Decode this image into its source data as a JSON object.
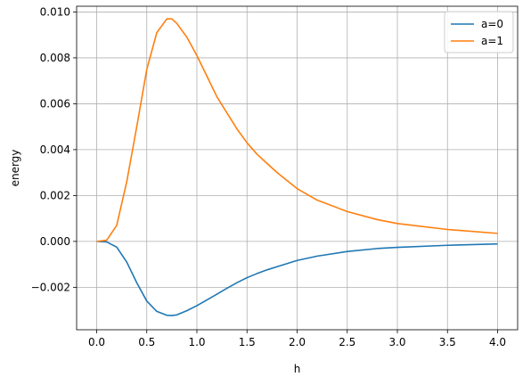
{
  "chart_data": {
    "type": "line",
    "title": "",
    "xlabel": "h",
    "ylabel": "energy",
    "xlim": [
      -0.2,
      4.2
    ],
    "ylim": [
      -0.00385,
      0.01025
    ],
    "xticks": [
      0.0,
      0.5,
      1.0,
      1.5,
      2.0,
      2.5,
      3.0,
      3.5,
      4.0
    ],
    "xtick_labels": [
      "0.0",
      "0.5",
      "1.0",
      "1.5",
      "2.0",
      "2.5",
      "3.0",
      "3.5",
      "4.0"
    ],
    "yticks": [
      -0.002,
      0.0,
      0.002,
      0.004,
      0.006,
      0.008,
      0.01
    ],
    "ytick_labels": [
      "−0.002",
      "0.000",
      "0.002",
      "0.004",
      "0.006",
      "0.008",
      "0.010"
    ],
    "grid": true,
    "legend_position": "top-right",
    "series": [
      {
        "name": "a=0",
        "color": "#1f77b4",
        "x": [
          0.0,
          0.1,
          0.2,
          0.3,
          0.4,
          0.5,
          0.6,
          0.7,
          0.75,
          0.8,
          0.9,
          1.0,
          1.1,
          1.2,
          1.3,
          1.4,
          1.5,
          1.6,
          1.7,
          1.8,
          2.0,
          2.2,
          2.5,
          2.8,
          3.0,
          3.5,
          4.0
        ],
        "y": [
          0.0,
          -2e-05,
          -0.00025,
          -0.0009,
          -0.0018,
          -0.0026,
          -0.00305,
          -0.00322,
          -0.00323,
          -0.0032,
          -0.00302,
          -0.0028,
          -0.00255,
          -0.0023,
          -0.00204,
          -0.0018,
          -0.00158,
          -0.0014,
          -0.00124,
          -0.0011,
          -0.00083,
          -0.00064,
          -0.00044,
          -0.00031,
          -0.00026,
          -0.00017,
          -0.00011
        ]
      },
      {
        "name": "a=1",
        "color": "#ff7f0e",
        "x": [
          0.0,
          0.1,
          0.2,
          0.3,
          0.4,
          0.5,
          0.6,
          0.7,
          0.75,
          0.8,
          0.9,
          1.0,
          1.1,
          1.2,
          1.3,
          1.4,
          1.5,
          1.6,
          1.7,
          1.8,
          2.0,
          2.2,
          2.5,
          2.8,
          3.0,
          3.5,
          4.0
        ],
        "y": [
          0.0,
          5e-05,
          0.0007,
          0.0026,
          0.005,
          0.0075,
          0.0091,
          0.0097,
          0.0097,
          0.0095,
          0.0089,
          0.0081,
          0.0072,
          0.0063,
          0.0056,
          0.0049,
          0.0043,
          0.0038,
          0.0034,
          0.003,
          0.0023,
          0.0018,
          0.0013,
          0.00095,
          0.00078,
          0.00052,
          0.00035
        ]
      }
    ]
  }
}
